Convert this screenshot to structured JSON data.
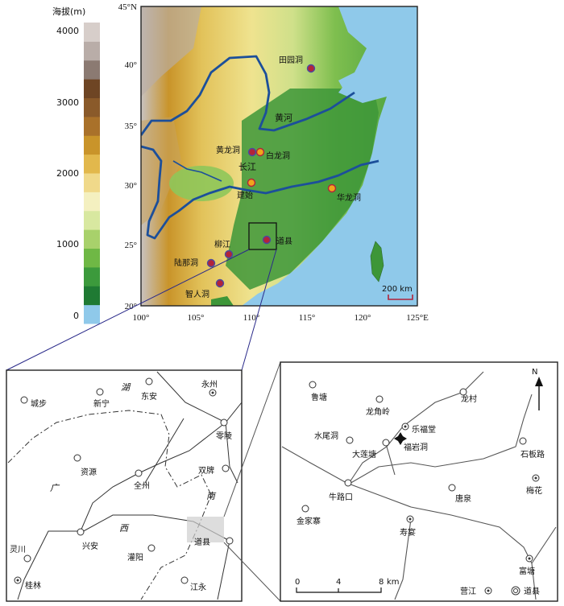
{
  "legend": {
    "title": "海拔(m)",
    "ticks": [
      "4000",
      "3000",
      "2000",
      "1000",
      "0"
    ],
    "colors": [
      "#8fc9ea",
      "#1f7a33",
      "#3c9a3c",
      "#6fb845",
      "#a8d16b",
      "#d8e8a0",
      "#f4f0c0",
      "#f0d98a",
      "#e2b84c",
      "#c9942a",
      "#a9712a",
      "#8a5a2a",
      "#6e4524",
      "#8b7a72",
      "#b9ada8",
      "#d7ceca"
    ]
  },
  "main_map": {
    "lat_labels": [
      "45°N",
      "40°",
      "35°",
      "30°",
      "25°",
      "20°"
    ],
    "lon_labels": [
      "100°",
      "105°",
      "110°",
      "115°",
      "120°",
      "125°E"
    ],
    "rivers": [
      "黄河",
      "长江"
    ],
    "sites": [
      {
        "name": "田园洞",
        "style": "red"
      },
      {
        "name": "黄龙洞",
        "style": "red"
      },
      {
        "name": "白龙洞",
        "style": "yellow"
      },
      {
        "name": "建始",
        "style": "yellow"
      },
      {
        "name": "华龙洞",
        "style": "yellow"
      },
      {
        "name": "道县",
        "style": "red"
      },
      {
        "name": "柳江",
        "style": "red"
      },
      {
        "name": "陆那洞",
        "style": "red"
      },
      {
        "name": "智人洞",
        "style": "red"
      }
    ],
    "scale_label": "200 km",
    "colors": {
      "sea": "#8fc9ea",
      "lowland": "#3f9a3a",
      "border": "#1c4f9a",
      "site_red": "#b2233a",
      "site_yellow": "#f2a51c"
    }
  },
  "left_inset": {
    "towns": [
      "城步",
      "新宁",
      "东安",
      "永州",
      "零陵",
      "双牌",
      "资源",
      "全州",
      "兴安",
      "灌阳",
      "道县",
      "江永",
      "灵川",
      "桂林"
    ],
    "regions": [
      "湖",
      "广",
      "西",
      "南"
    ]
  },
  "right_inset": {
    "towns": [
      "鲁塘",
      "龙村",
      "龙角岭",
      "乐福堂",
      "水尾洞",
      "大莲塘",
      "福岩洞",
      "石板路",
      "梅花",
      "牛路口",
      "唐泉",
      "金家寨",
      "寿宴",
      "富塘",
      "营江",
      "道县"
    ],
    "scale_ticks": [
      "0",
      "4",
      "8"
    ],
    "scale_unit": "km",
    "north_label": "N"
  }
}
